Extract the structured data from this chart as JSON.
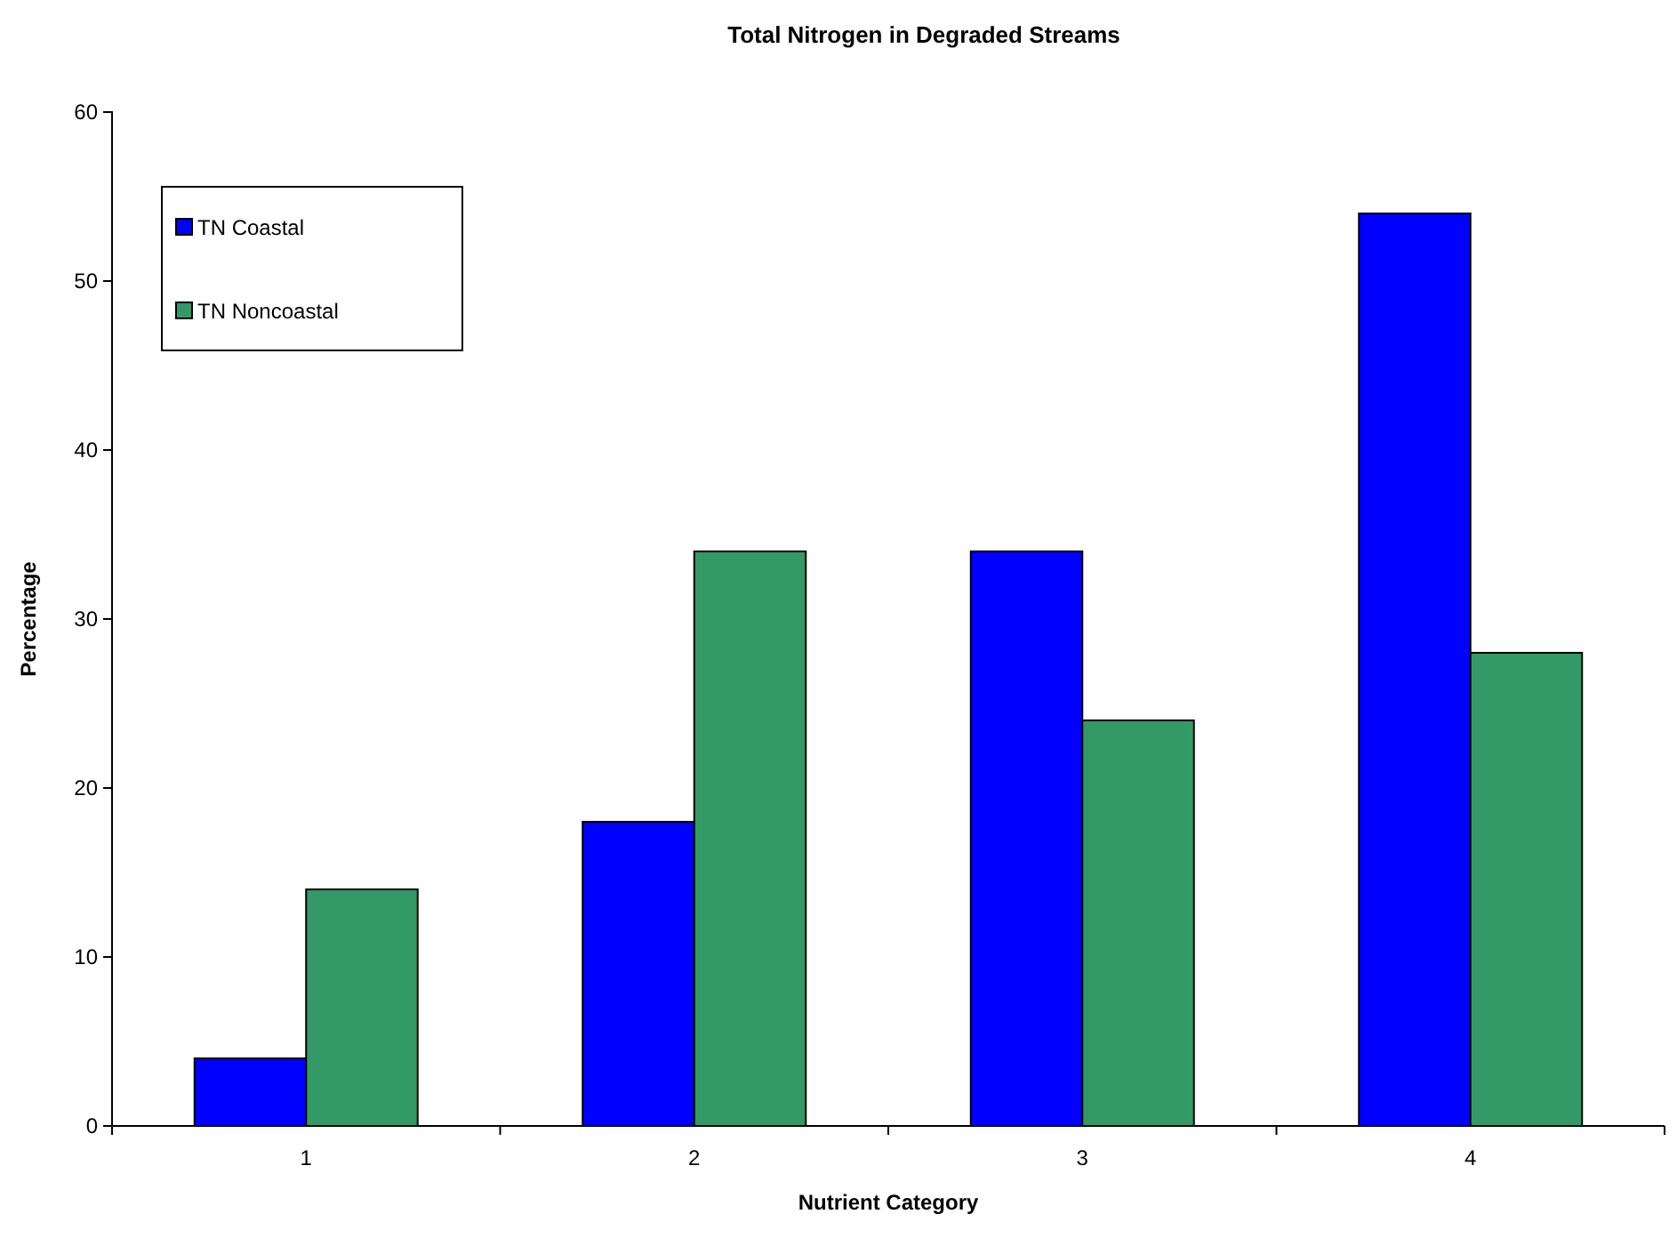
{
  "chart_data": {
    "type": "bar",
    "title": "Total Nitrogen in Degraded Streams",
    "xlabel": "Nutrient Category",
    "ylabel": "Percentage",
    "categories": [
      "1",
      "2",
      "3",
      "4"
    ],
    "series": [
      {
        "name": "TN Coastal",
        "color": "#0000ff",
        "values": [
          4,
          18,
          34,
          54
        ]
      },
      {
        "name": "TN Noncoastal",
        "color": "#339966",
        "values": [
          14,
          34,
          24,
          28
        ]
      }
    ],
    "ylim": [
      0,
      60
    ],
    "yticks": [
      0,
      10,
      20,
      30,
      40,
      50,
      60
    ],
    "grid": false,
    "legend": "top left"
  }
}
